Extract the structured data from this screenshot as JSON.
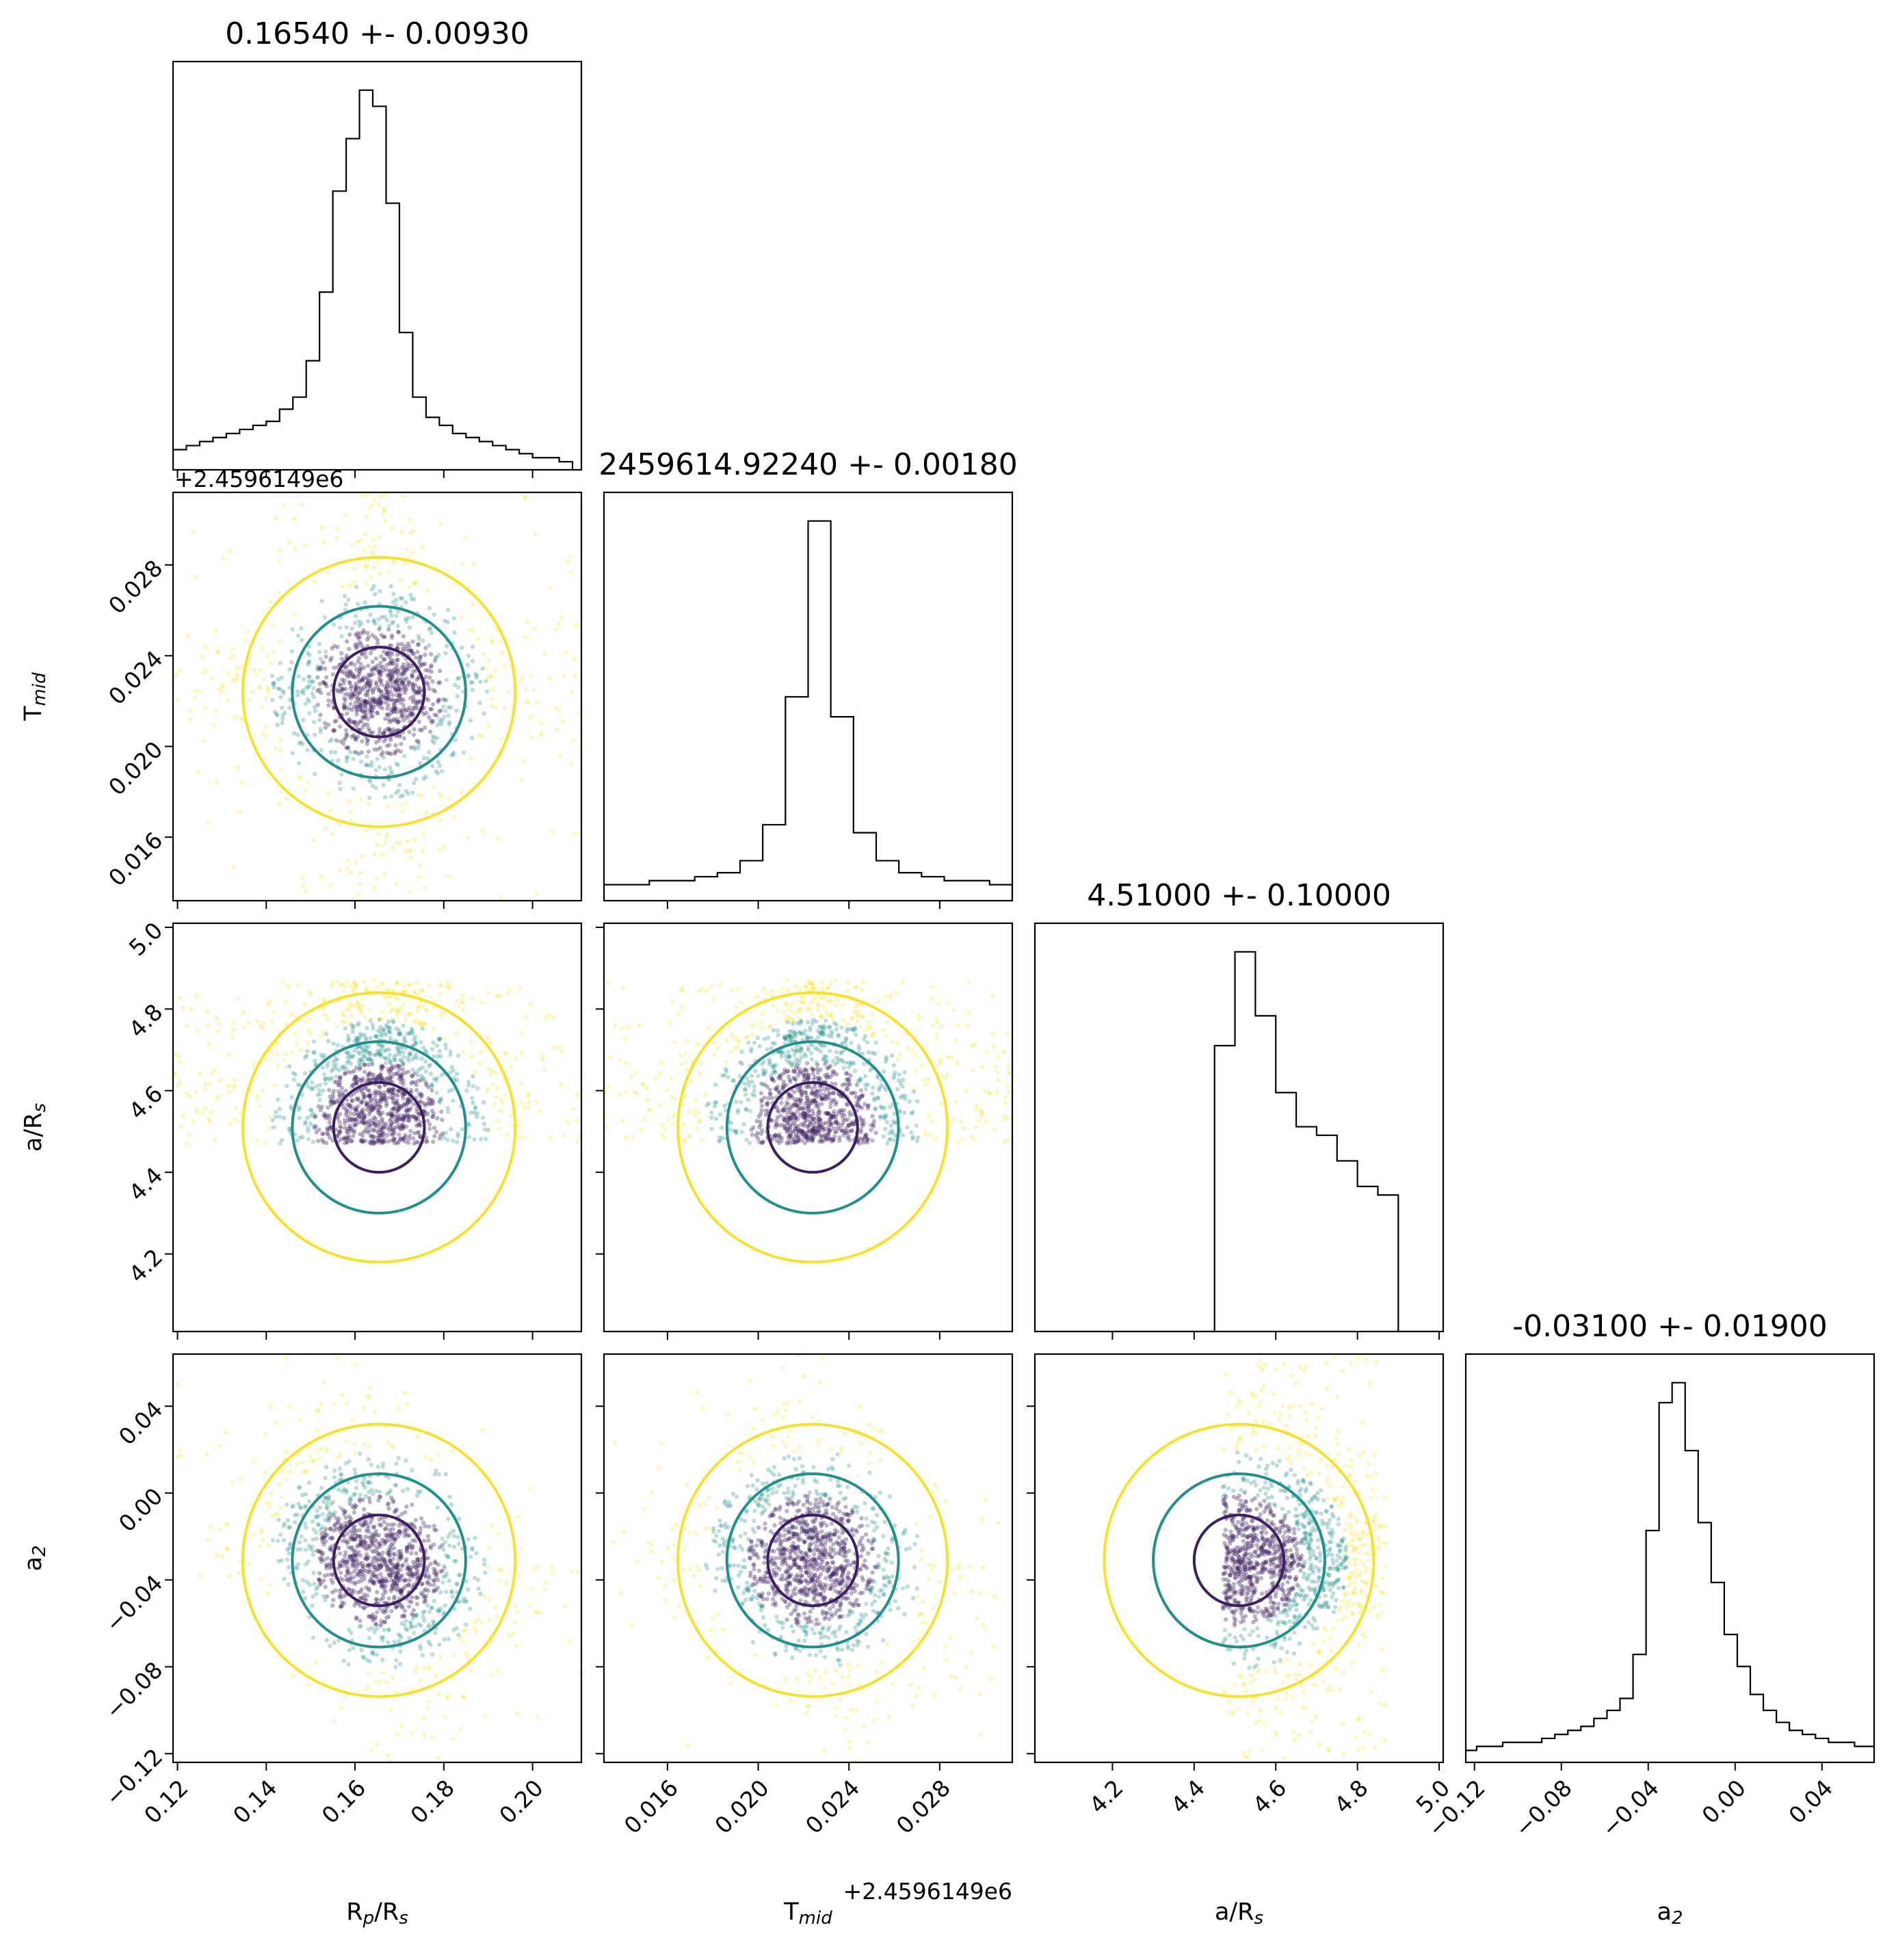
{
  "colors": {
    "frame": "#000000",
    "inner": "#3b1f5e",
    "mid": "#218f8a",
    "outer": "#f5e22a"
  },
  "chart_data": {
    "type": "corner",
    "grid": false,
    "legend": "none",
    "parameters": [
      {
        "label": "R$_p$/R$_s$",
        "range": [
          0.119,
          0.211
        ],
        "title": "0.16540 +- 0.00930",
        "mean": 0.1654,
        "std": 0.0093,
        "ticks": [
          "0.12",
          "0.14",
          "0.16",
          "0.18",
          "0.20"
        ],
        "tick_values": [
          0.12,
          0.14,
          0.16,
          0.18,
          0.2
        ],
        "offset": ""
      },
      {
        "label": "T$_{mid}$",
        "range": [
          0.0132,
          0.0312
        ],
        "title": "2459614.92240 +- 0.00180",
        "mean": 0.0224,
        "std": 0.0018,
        "ticks": [
          "0.016",
          "0.020",
          "0.024",
          "0.028"
        ],
        "tick_values": [
          0.016,
          0.02,
          0.024,
          0.028
        ],
        "offset": "+2.4596149e6"
      },
      {
        "label": "a/R$_s$",
        "range": [
          4.01,
          5.01
        ],
        "title": "4.51000 +- 0.10000",
        "mean": 4.51,
        "std": 0.1,
        "ticks": [
          "4.2",
          "4.4",
          "4.6",
          "4.8",
          "5.0"
        ],
        "tick_values": [
          4.2,
          4.4,
          4.6,
          4.8,
          5.0
        ],
        "offset": ""
      },
      {
        "label": "a$_2$",
        "range": [
          -0.124,
          0.064
        ],
        "title": "-0.03100 +- 0.01900",
        "mean": -0.031,
        "std": 0.019,
        "ticks": [
          "−0.12",
          "−0.08",
          "−0.04",
          "0.00",
          "0.04"
        ],
        "tick_values": [
          -0.12,
          -0.08,
          -0.04,
          0.0,
          0.04
        ],
        "offset": ""
      }
    ],
    "histograms": [
      {
        "param": 0,
        "bin_centers": [
          0.1205,
          0.1235,
          0.1265,
          0.1295,
          0.1325,
          0.1355,
          0.1385,
          0.1415,
          0.1445,
          0.1475,
          0.1505,
          0.1535,
          0.1565,
          0.1595,
          0.1625,
          0.1655,
          0.1685,
          0.1715,
          0.1745,
          0.1775,
          0.1805,
          0.1835,
          0.1865,
          0.1895,
          0.1925,
          0.1955,
          0.1985,
          0.2015,
          0.2045,
          0.2075
        ],
        "counts": [
          5,
          6,
          7,
          8,
          9,
          10,
          11,
          12,
          15,
          18,
          27,
          44,
          69,
          82,
          94,
          90,
          66,
          34,
          18,
          13,
          11,
          9,
          8,
          7,
          6,
          5,
          4,
          3,
          3,
          2
        ]
      },
      {
        "param": 1,
        "bin_centers": [
          0.0137,
          0.0147,
          0.0157,
          0.0167,
          0.0177,
          0.0187,
          0.0197,
          0.0207,
          0.0217,
          0.0227,
          0.0237,
          0.0247,
          0.0257,
          0.0267,
          0.0277,
          0.0287,
          0.0297,
          0.0307
        ],
        "counts": [
          4,
          4,
          5,
          5,
          6,
          7,
          10,
          19,
          51,
          95,
          46,
          17,
          10,
          7,
          6,
          5,
          5,
          4
        ]
      },
      {
        "param": 2,
        "bin_centers": [
          4.025,
          4.075,
          4.125,
          4.175,
          4.225,
          4.275,
          4.325,
          4.375,
          4.425,
          4.475,
          4.525,
          4.575,
          4.625,
          4.675,
          4.725,
          4.775,
          4.825,
          4.875,
          4.925,
          4.975
        ],
        "counts": [
          0,
          0,
          0,
          0,
          0,
          0,
          0,
          0,
          0,
          67,
          89,
          74,
          56,
          48,
          46,
          40,
          34,
          32,
          0,
          0
        ]
      },
      {
        "param": 3,
        "bin_centers": [
          -0.122,
          -0.116,
          -0.11,
          -0.104,
          -0.098,
          -0.092,
          -0.086,
          -0.08,
          -0.074,
          -0.068,
          -0.062,
          -0.056,
          -0.05,
          -0.044,
          -0.038,
          -0.032,
          -0.026,
          -0.02,
          -0.014,
          -0.008,
          -0.002,
          0.004,
          0.01,
          0.016,
          0.022,
          0.028,
          0.034,
          0.04,
          0.046,
          0.052,
          0.058,
          0.064
        ],
        "counts": [
          3,
          4,
          4,
          5,
          5,
          5,
          6,
          7,
          8,
          9,
          11,
          13,
          16,
          27,
          58,
          90,
          95,
          78,
          60,
          45,
          32,
          24,
          17,
          13,
          10,
          8,
          7,
          6,
          5,
          5,
          4,
          4
        ]
      }
    ],
    "correlations": [
      {
        "x": 0,
        "y": 1,
        "rho": 0.0
      },
      {
        "x": 0,
        "y": 3,
        "rho": -0.45
      },
      {
        "x": 1,
        "y": 3,
        "rho": -0.25
      },
      {
        "x": 0,
        "y": 2,
        "rho": 0.0
      },
      {
        "x": 1,
        "y": 2,
        "rho": 0.0
      },
      {
        "x": 2,
        "y": 3,
        "rho": -0.1
      }
    ],
    "truncation": {
      "param": 2,
      "min": 4.47,
      "max": 4.87
    }
  }
}
